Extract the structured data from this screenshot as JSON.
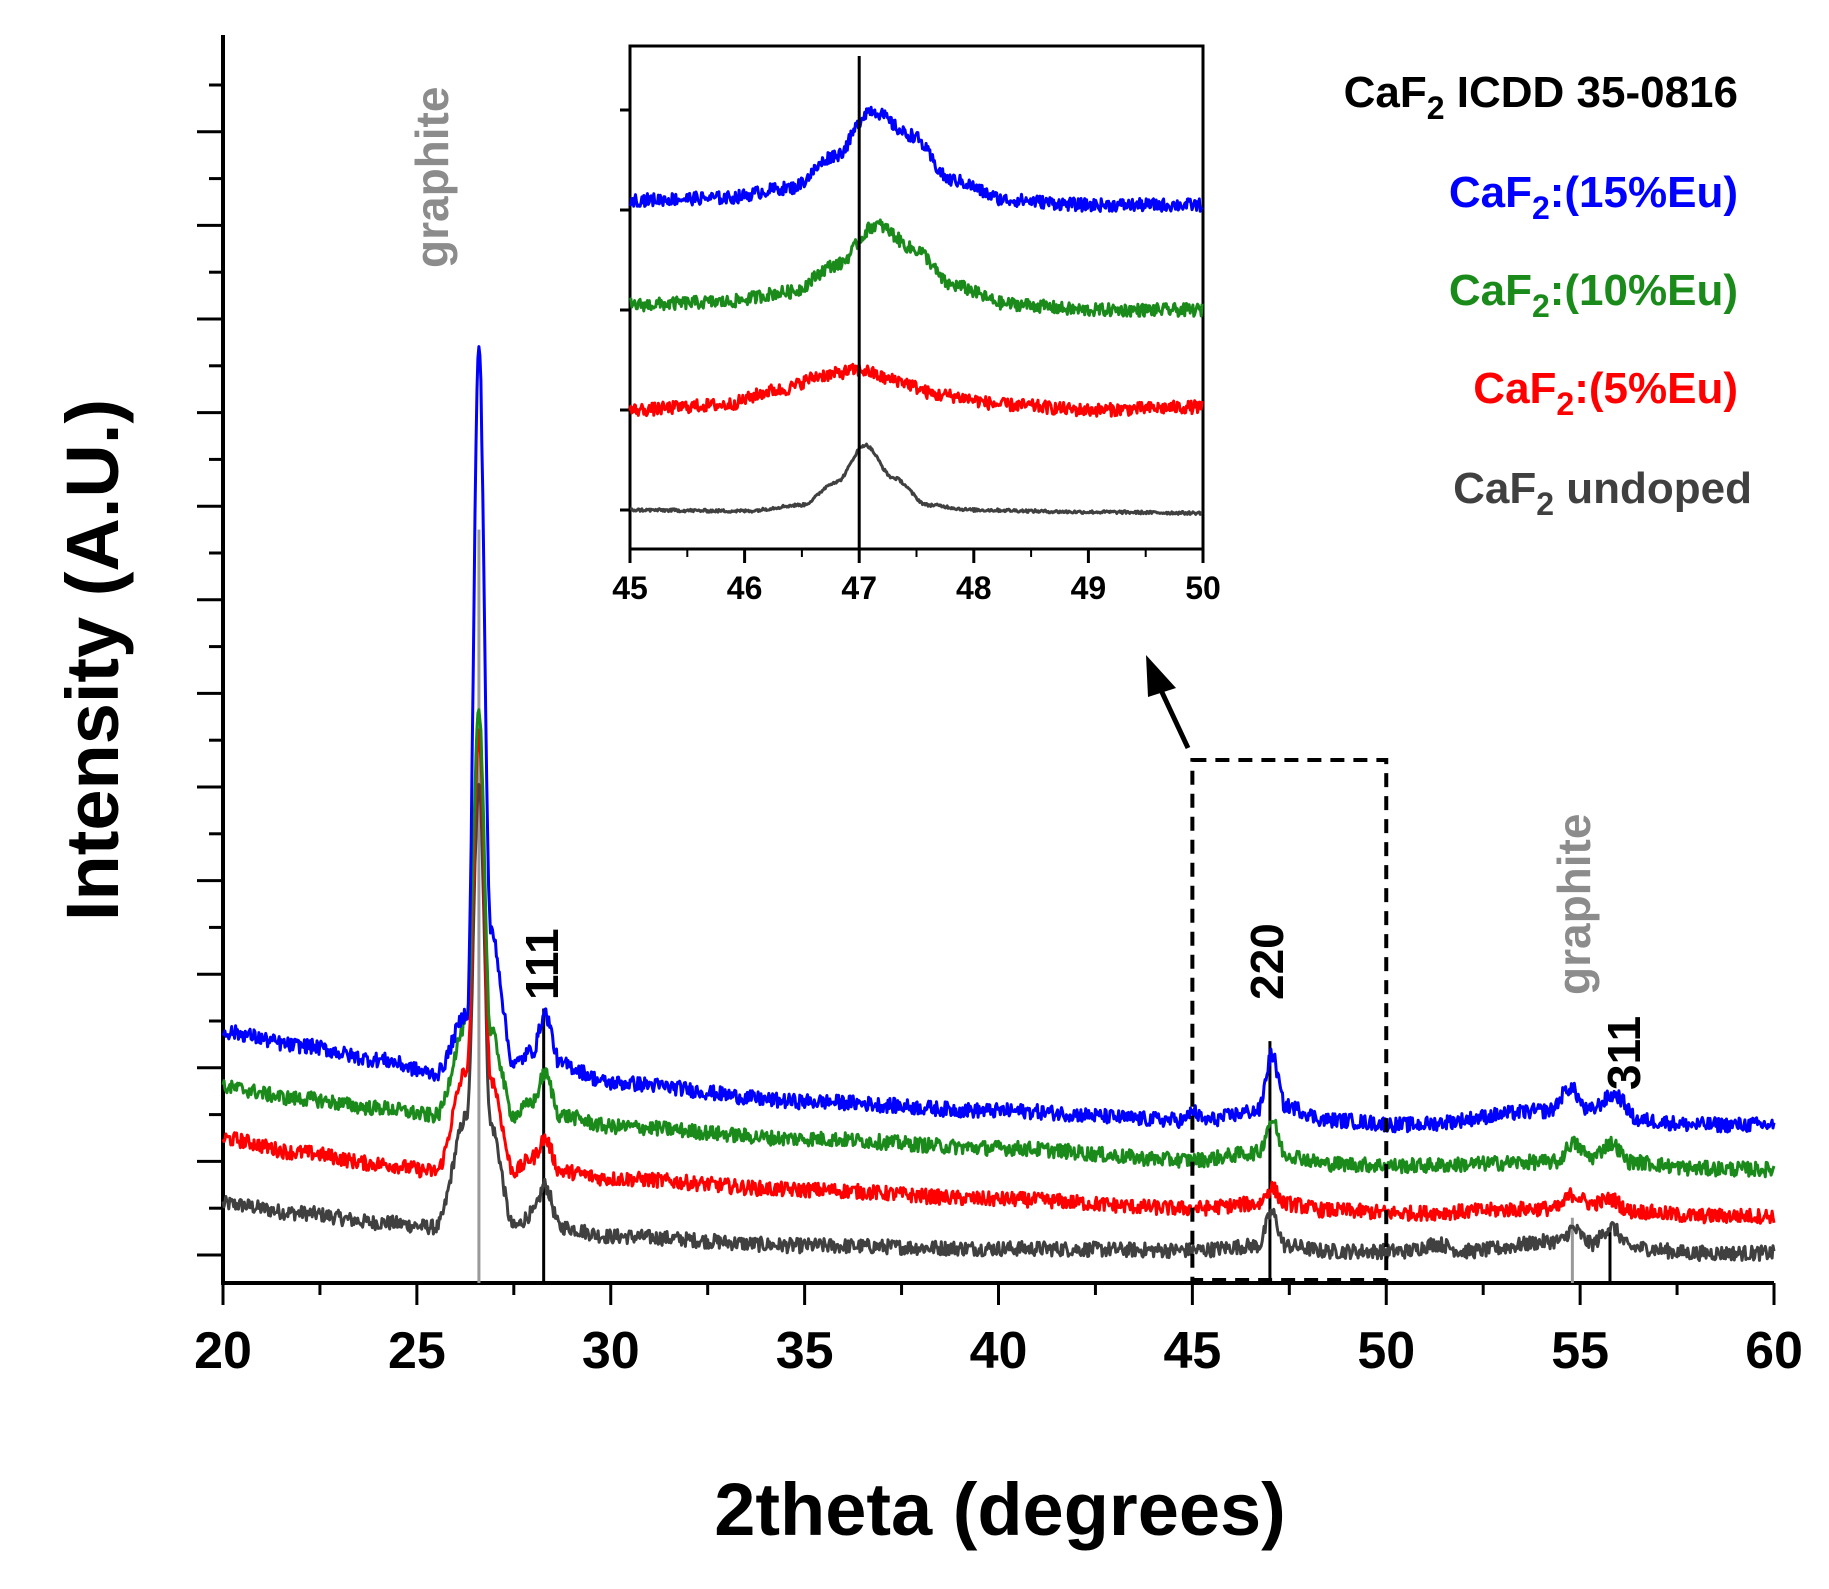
{
  "chart_data": {
    "type": "line",
    "xlabel": "2theta (degrees)",
    "ylabel": "Intensity (A.U.)",
    "xlim": [
      20,
      60
    ],
    "ylim": [
      0,
      10
    ],
    "xticks": [
      20,
      25,
      30,
      35,
      40,
      45,
      50,
      55,
      60
    ],
    "grid": false,
    "legend_position": "top-right",
    "reference_title": "CaF",
    "reference_title_sub": "2",
    "reference_title_rest": " ICDD 35-0816",
    "series": [
      {
        "name": "CaF2 undoped",
        "label_main": "CaF",
        "label_sub": "2",
        "label_rest": " undoped",
        "color": "#404040",
        "x": [
          20,
          22,
          24,
          25.5,
          26.3,
          26.6,
          26.9,
          27.5,
          28.0,
          28.3,
          28.7,
          30,
          35,
          40,
          45,
          46.7,
          47.05,
          47.4,
          48.5,
          50.5,
          51.3,
          52,
          54.5,
          54.8,
          55.3,
          55.8,
          56.3,
          58,
          60
        ],
        "y": [
          0.55,
          0.45,
          0.35,
          0.3,
          1.5,
          5.1,
          1.4,
          0.3,
          0.45,
          0.75,
          0.3,
          0.2,
          0.1,
          0.07,
          0.05,
          0.1,
          0.45,
          0.1,
          0.04,
          0.04,
          0.12,
          0.04,
          0.15,
          0.28,
          0.12,
          0.3,
          0.08,
          0.02,
          0.02
        ]
      },
      {
        "name": "CaF2:(5%Eu)",
        "label_main": "CaF",
        "label_sub": "2",
        "label_rest": ":(5%Eu)",
        "color": "#ff0000",
        "x": [
          20,
          22,
          24,
          25.5,
          26.3,
          26.6,
          26.9,
          27.5,
          28.0,
          28.3,
          28.7,
          30,
          35,
          40,
          45,
          46.7,
          47.05,
          47.4,
          48.5,
          50.5,
          54.4,
          54.8,
          55.3,
          55.8,
          56.3,
          58,
          60
        ],
        "y": [
          1.25,
          1.1,
          0.98,
          0.9,
          2.0,
          5.6,
          1.9,
          0.9,
          1.05,
          1.25,
          0.9,
          0.82,
          0.7,
          0.6,
          0.5,
          0.55,
          0.72,
          0.55,
          0.48,
          0.45,
          0.5,
          0.65,
          0.55,
          0.6,
          0.47,
          0.42,
          0.42
        ]
      },
      {
        "name": "CaF2:(10%Eu)",
        "label_main": "CaF",
        "label_sub": "2",
        "label_rest": ":(10%Eu)",
        "color": "#1a8a1a",
        "x": [
          20,
          22,
          24,
          25.5,
          26.3,
          26.6,
          26.9,
          27.5,
          28.0,
          28.3,
          28.7,
          30,
          35,
          40,
          45,
          46.7,
          47.05,
          47.4,
          48.5,
          50.5,
          54.4,
          54.8,
          55.3,
          55.8,
          56.3,
          58,
          60
        ],
        "y": [
          1.8,
          1.68,
          1.58,
          1.5,
          2.5,
          5.9,
          2.4,
          1.5,
          1.65,
          1.95,
          1.5,
          1.38,
          1.25,
          1.15,
          1.02,
          1.1,
          1.45,
          1.08,
          0.98,
          0.96,
          1.0,
          1.2,
          1.05,
          1.2,
          1.0,
          0.93,
          0.92
        ]
      },
      {
        "name": "CaF2:(15%Eu)",
        "label_main": "CaF",
        "label_sub": "2",
        "label_rest": ":(15%Eu)",
        "color": "#0000ff",
        "x": [
          20,
          22,
          24,
          25.5,
          26.3,
          26.6,
          26.9,
          27.5,
          28.0,
          28.3,
          28.7,
          30,
          35,
          40,
          44.8,
          45.0,
          45.3,
          46.7,
          47.05,
          47.4,
          48.5,
          50.5,
          54.2,
          54.75,
          55.2,
          55.9,
          56.5,
          58,
          60
        ],
        "y": [
          2.4,
          2.25,
          2.1,
          1.95,
          2.6,
          9.8,
          3.5,
          2.05,
          2.2,
          2.6,
          2.05,
          1.85,
          1.65,
          1.55,
          1.45,
          1.55,
          1.45,
          1.55,
          2.15,
          1.6,
          1.45,
          1.4,
          1.55,
          1.8,
          1.55,
          1.72,
          1.45,
          1.4,
          1.4
        ]
      }
    ],
    "reference_lines": [
      {
        "x": 26.6,
        "height": 7.8,
        "color": "#999999",
        "label": "graphite"
      },
      {
        "x": 28.27,
        "height": 2.65,
        "color": "#000000",
        "label": "111"
      },
      {
        "x": 47.0,
        "height": 2.3,
        "color": "#000000",
        "label": "220"
      },
      {
        "x": 54.8,
        "height": 0.4,
        "color": "#999999",
        "label": "graphite"
      },
      {
        "x": 55.77,
        "height": 0.3,
        "color": "#000000",
        "label": "311"
      }
    ],
    "annotations": [
      {
        "text": "graphite",
        "x": 26.5,
        "color": "#8c8c8c"
      },
      {
        "text": "111",
        "x": 28.5,
        "color": "#000000"
      },
      {
        "text": "220",
        "x": 47.2,
        "color": "#000000"
      },
      {
        "text": "graphite",
        "x": 54.9,
        "color": "#8c8c8c"
      },
      {
        "text": "311",
        "x": 56.0,
        "color": "#000000"
      }
    ],
    "zoom_box": {
      "xlim": [
        45,
        50
      ]
    },
    "inset": {
      "xlim": [
        45,
        50
      ],
      "xticks": [
        45,
        46,
        47,
        48,
        49,
        50
      ],
      "reference_x": 47.0,
      "series": [
        {
          "name": "CaF2 undoped",
          "color": "#404040",
          "offset": 0.0,
          "x": [
            45,
            46,
            46.5,
            46.8,
            47.05,
            47.3,
            47.6,
            48,
            49,
            50
          ],
          "y": [
            0.0,
            -0.01,
            0.05,
            0.28,
            0.65,
            0.32,
            0.05,
            0.0,
            -0.02,
            -0.03
          ]
        },
        {
          "name": "CaF2:(5%Eu)",
          "color": "#ff0000",
          "offset": 1.0,
          "x": [
            45,
            45.8,
            46.3,
            46.7,
            47.0,
            47.3,
            47.7,
            48.3,
            49,
            50
          ],
          "y": [
            0.0,
            0.05,
            0.2,
            0.35,
            0.4,
            0.3,
            0.15,
            0.05,
            0.0,
            0.03
          ]
        },
        {
          "name": "CaF2:(10%Eu)",
          "color": "#1a8a1a",
          "offset": 2.0,
          "x": [
            45,
            45.8,
            46.4,
            46.8,
            47.15,
            47.5,
            47.8,
            48.3,
            49,
            50
          ],
          "y": [
            0.05,
            0.08,
            0.18,
            0.45,
            0.85,
            0.6,
            0.25,
            0.06,
            0.0,
            0.0
          ]
        },
        {
          "name": "CaF2:(15%Eu)",
          "color": "#0000ff",
          "offset": 3.0,
          "x": [
            45,
            45.8,
            46.4,
            46.8,
            47.1,
            47.45,
            47.8,
            48.3,
            49,
            50
          ],
          "y": [
            0.1,
            0.12,
            0.22,
            0.55,
            1.0,
            0.75,
            0.3,
            0.1,
            0.05,
            0.05
          ]
        }
      ]
    }
  }
}
